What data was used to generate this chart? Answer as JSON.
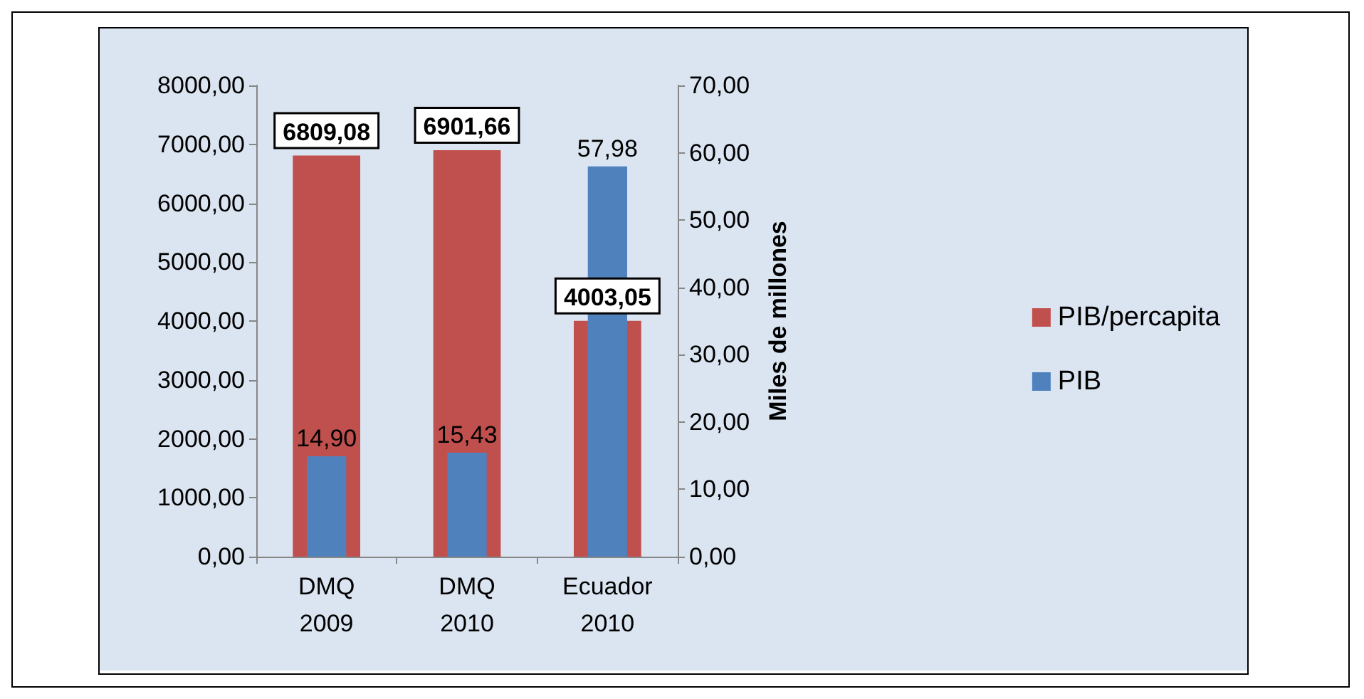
{
  "chart_data": {
    "type": "bar",
    "y2label": "Miles de millones",
    "categories": [
      "DMQ\n2009",
      "DMQ\n2010",
      "Ecuador\n2010"
    ],
    "series": [
      {
        "name": "PIB/percapita",
        "color": "#c0504d",
        "values": [
          6809.08,
          6901.66,
          4003.05
        ],
        "value_labels": [
          "6809,08",
          "6901,66",
          "4003,05"
        ]
      },
      {
        "name": "PIB",
        "color": "#4f81bd",
        "axis": "y2",
        "values": [
          14.9,
          15.43,
          57.98
        ],
        "value_labels": [
          "14,90",
          "15,43",
          "57,98"
        ]
      }
    ],
    "ylim": [
      0,
      8000
    ],
    "yticks": [
      {
        "value": 0,
        "label": "0,00"
      },
      {
        "value": 1000,
        "label": "1000,00"
      },
      {
        "value": 2000,
        "label": "2000,00"
      },
      {
        "value": 3000,
        "label": "3000,00"
      },
      {
        "value": 4000,
        "label": "4000,00"
      },
      {
        "value": 5000,
        "label": "5000,00"
      },
      {
        "value": 6000,
        "label": "6000,00"
      },
      {
        "value": 7000,
        "label": "7000,00"
      },
      {
        "value": 8000,
        "label": "8000,00"
      }
    ],
    "y2lim": [
      0,
      70
    ],
    "y2ticks": [
      {
        "value": 0,
        "label": "0,00"
      },
      {
        "value": 10,
        "label": "10,00"
      },
      {
        "value": 20,
        "label": "20,00"
      },
      {
        "value": 30,
        "label": "30,00"
      },
      {
        "value": 40,
        "label": "40,00"
      },
      {
        "value": 50,
        "label": "50,00"
      },
      {
        "value": 60,
        "label": "60,00"
      },
      {
        "value": 70,
        "label": "70,00"
      }
    ],
    "legend": "right",
    "grid": false
  }
}
